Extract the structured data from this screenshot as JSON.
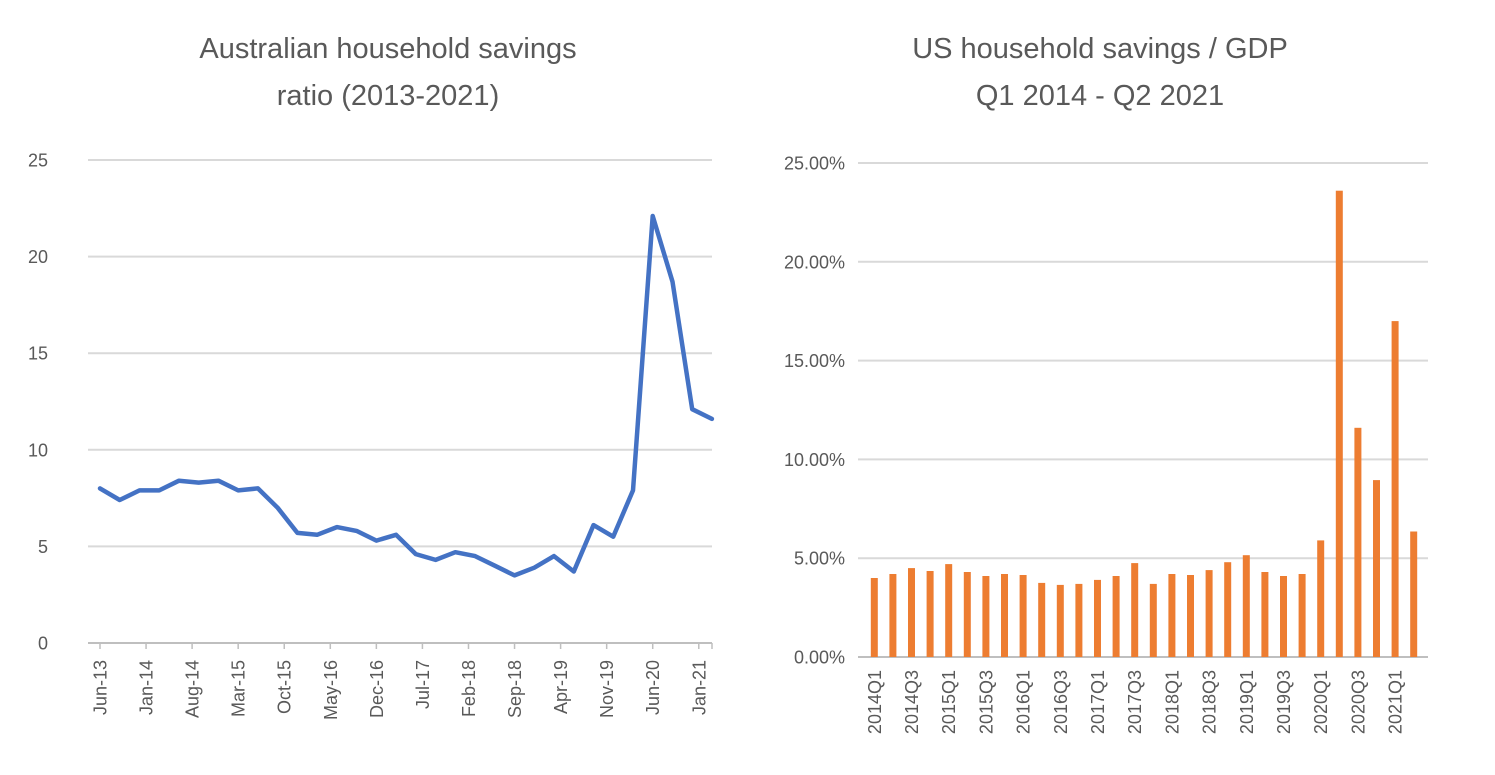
{
  "colors": {
    "background": "#FFFFFF",
    "title_text": "#595959",
    "axis_text": "#595959",
    "gridline": "#D9D9D9",
    "axis_line": "#BFBFBF",
    "line_series": "#4472C4",
    "bar_series": "#ED7D31"
  },
  "chart_data": [
    {
      "type": "line",
      "title": "Australian household savings ratio (2013-2021)",
      "title_line1": "Australian household savings",
      "title_line2": "ratio (2013-2021)",
      "x": [
        "Jun-13",
        "Sep-13",
        "Dec-13",
        "Mar-14",
        "Jun-14",
        "Sep-14",
        "Dec-14",
        "Mar-15",
        "Jun-15",
        "Sep-15",
        "Dec-15",
        "Mar-16",
        "Jun-16",
        "Sep-16",
        "Dec-16",
        "Mar-17",
        "Jun-17",
        "Sep-17",
        "Dec-17",
        "Mar-18",
        "Jun-18",
        "Sep-18",
        "Dec-18",
        "Mar-19",
        "Jun-19",
        "Sep-19",
        "Dec-19",
        "Mar-20",
        "Jun-20",
        "Sep-20",
        "Dec-20",
        "Mar-21"
      ],
      "values": [
        8.0,
        7.4,
        7.9,
        7.9,
        8.4,
        8.3,
        8.4,
        7.9,
        8.0,
        7.0,
        5.7,
        5.6,
        6.0,
        5.8,
        5.3,
        5.6,
        4.6,
        4.3,
        4.7,
        4.5,
        4.0,
        3.5,
        3.9,
        4.5,
        3.7,
        6.1,
        5.5,
        7.9,
        22.1,
        18.7,
        12.1,
        11.6
      ],
      "x_tick_labels": [
        "Jun-13",
        "Jan-14",
        "Aug-14",
        "Mar-15",
        "Oct-15",
        "May-16",
        "Dec-16",
        "Jul-17",
        "Feb-18",
        "Sep-18",
        "Apr-19",
        "Nov-19",
        "Jun-20",
        "Jan-21"
      ],
      "x_tick_interval_months": 7,
      "ylim": [
        0,
        25
      ],
      "y_tick_labels": [
        "0",
        "5",
        "10",
        "15",
        "20",
        "25"
      ],
      "grid": true,
      "legend": "none",
      "line_color": "#4472C4"
    },
    {
      "type": "bar",
      "title": "US household savings / GDP Q1 2014 - Q2 2021",
      "title_line1": "US household savings / GDP",
      "title_line2": "Q1 2014 - Q2 2021",
      "categories": [
        "2014Q1",
        "2014Q2",
        "2014Q3",
        "2014Q4",
        "2015Q1",
        "2015Q2",
        "2015Q3",
        "2015Q4",
        "2016Q1",
        "2016Q2",
        "2016Q3",
        "2016Q4",
        "2017Q1",
        "2017Q2",
        "2017Q3",
        "2017Q4",
        "2018Q1",
        "2018Q2",
        "2018Q3",
        "2018Q4",
        "2019Q1",
        "2019Q2",
        "2019Q3",
        "2019Q4",
        "2020Q1",
        "2020Q2",
        "2020Q3",
        "2020Q4",
        "2021Q1",
        "2021Q2"
      ],
      "values": [
        4.0,
        4.2,
        4.5,
        4.35,
        4.7,
        4.3,
        4.1,
        4.2,
        4.15,
        3.75,
        3.65,
        3.7,
        3.9,
        4.1,
        4.75,
        3.7,
        4.2,
        4.15,
        4.4,
        4.8,
        5.15,
        4.3,
        4.1,
        4.2,
        5.9,
        23.6,
        11.6,
        8.95,
        17.0,
        6.35
      ],
      "x_tick_labels": [
        "2014Q1",
        "2014Q3",
        "2015Q1",
        "2015Q3",
        "2016Q1",
        "2016Q3",
        "2017Q1",
        "2017Q3",
        "2018Q1",
        "2018Q3",
        "2019Q1",
        "2019Q3",
        "2020Q1",
        "2020Q3",
        "2021Q1"
      ],
      "ylim": [
        0,
        25
      ],
      "y_tick_labels": [
        "0.00%",
        "5.00%",
        "10.00%",
        "15.00%",
        "20.00%",
        "25.00%"
      ],
      "grid": true,
      "legend": "none",
      "bar_color": "#ED7D31"
    }
  ]
}
